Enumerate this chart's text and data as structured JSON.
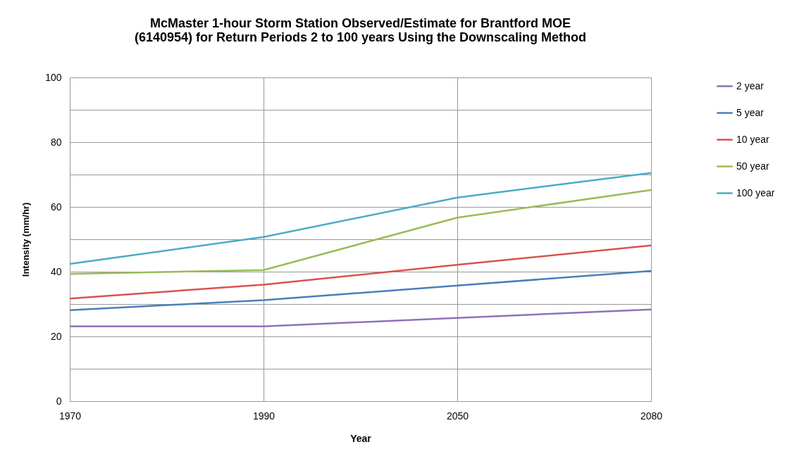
{
  "chart_data": {
    "type": "line",
    "title": "McMaster 1-hour Storm Station Observed/Estimate for Brantford MOE\n(6140954) for Return Periods 2 to 100 years Using the Downscaling Method",
    "xlabel": "Year",
    "ylabel": "Intensity (mm/hr)",
    "categories": [
      "1970",
      "1990",
      "2050",
      "2080"
    ],
    "series": [
      {
        "name": "2 year",
        "color": "#8e72b8",
        "values": [
          23.1,
          23.1,
          25.7,
          28.3
        ]
      },
      {
        "name": "5 year",
        "color": "#4a7ebb",
        "values": [
          28.1,
          31.2,
          35.7,
          40.2
        ]
      },
      {
        "name": "10 year",
        "color": "#d9534f",
        "values": [
          31.7,
          36.0,
          42.1,
          48.1
        ]
      },
      {
        "name": "50 year",
        "color": "#9bbb59",
        "values": [
          39.3,
          40.5,
          56.7,
          65.2
        ]
      },
      {
        "name": "100 year",
        "color": "#4bacc6",
        "values": [
          42.4,
          50.7,
          62.9,
          70.5
        ]
      }
    ],
    "ylim": [
      0,
      100
    ],
    "yticks": [
      0,
      {
        "value": 10,
        "label": null
      },
      20,
      {
        "value": 30,
        "label": null
      },
      40,
      {
        "value": 50,
        "label": null
      },
      60,
      {
        "value": 70,
        "label": null
      },
      80,
      {
        "value": 90,
        "label": null
      },
      100
    ],
    "grid": true,
    "legend": "right",
    "marker": "none",
    "line_style": "solid"
  }
}
